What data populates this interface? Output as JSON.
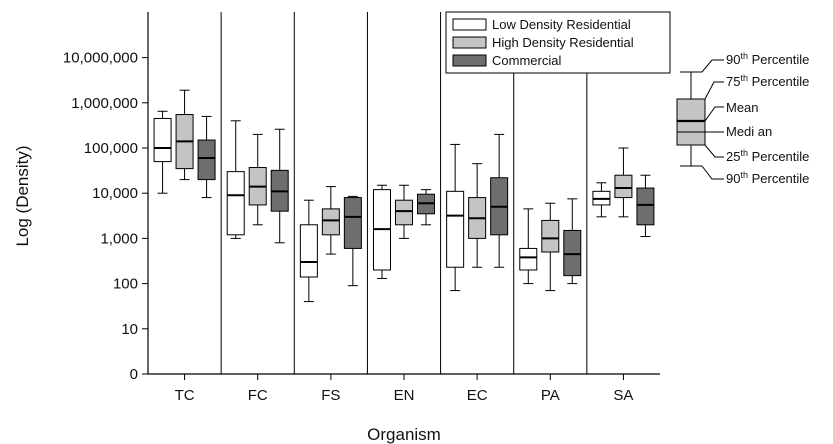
{
  "chart_data": {
    "type": "boxplot",
    "xlabel": "Organism",
    "ylabel": "Log (Density)",
    "y_scale": "log10",
    "ylim": [
      1,
      100000000
    ],
    "y_ticks": [
      {
        "value": 1,
        "label": "0"
      },
      {
        "value": 10,
        "label": "10"
      },
      {
        "value": 100,
        "label": "100"
      },
      {
        "value": 1000,
        "label": "1,000"
      },
      {
        "value": 10000,
        "label": "10,000"
      },
      {
        "value": 100000,
        "label": "100,000"
      },
      {
        "value": 1000000,
        "label": "1,000,000"
      },
      {
        "value": 10000000,
        "label": "10,000,000"
      }
    ],
    "categories": [
      "TC",
      "FC",
      "FS",
      "EN",
      "EC",
      "PA",
      "SA"
    ],
    "legend_position": "top-right",
    "series": [
      {
        "name": "Low Density Residential",
        "color": "#ffffff",
        "boxes": [
          {
            "wlo": 10000,
            "q1": 50000,
            "median": 100000,
            "q3": 450000,
            "whi": 650000
          },
          {
            "wlo": 1000,
            "q1": 1200,
            "median": 9000,
            "q3": 30000,
            "whi": 400000
          },
          {
            "wlo": 40,
            "q1": 140,
            "median": 300,
            "q3": 2000,
            "whi": 7000
          },
          {
            "wlo": 130,
            "q1": 200,
            "median": 1600,
            "q3": 12000,
            "whi": 15000
          },
          {
            "wlo": 70,
            "q1": 230,
            "median": 3200,
            "q3": 11000,
            "whi": 120000
          },
          {
            "wlo": 100,
            "q1": 200,
            "median": 380,
            "q3": 600,
            "whi": 4500
          },
          {
            "wlo": 3000,
            "q1": 5500,
            "median": 7500,
            "q3": 11000,
            "whi": 17000
          }
        ]
      },
      {
        "name": "High Density Residential",
        "color": "#c4c4c4",
        "boxes": [
          {
            "wlo": 20000,
            "q1": 35000,
            "median": 140000,
            "q3": 550000,
            "whi": 1900000
          },
          {
            "wlo": 2000,
            "q1": 5500,
            "median": 14000,
            "q3": 37000,
            "whi": 200000
          },
          {
            "wlo": 450,
            "q1": 1200,
            "median": 2500,
            "q3": 4500,
            "whi": 14000
          },
          {
            "wlo": 1000,
            "q1": 2000,
            "median": 4000,
            "q3": 7000,
            "whi": 15000
          },
          {
            "wlo": 230,
            "q1": 1000,
            "median": 2800,
            "q3": 8000,
            "whi": 45000
          },
          {
            "wlo": 70,
            "q1": 500,
            "median": 1000,
            "q3": 2500,
            "whi": 6000
          },
          {
            "wlo": 3000,
            "q1": 8000,
            "median": 13000,
            "q3": 25000,
            "whi": 100000
          }
        ]
      },
      {
        "name": "Commercial",
        "color": "#6e6e6e",
        "boxes": [
          {
            "wlo": 8000,
            "q1": 20000,
            "median": 60000,
            "q3": 150000,
            "whi": 500000
          },
          {
            "wlo": 800,
            "q1": 4000,
            "median": 11000,
            "q3": 32000,
            "whi": 260000
          },
          {
            "wlo": 90,
            "q1": 600,
            "median": 3000,
            "q3": 8000,
            "whi": 8500
          },
          {
            "wlo": 2000,
            "q1": 3500,
            "median": 6000,
            "q3": 9500,
            "whi": 12000
          },
          {
            "wlo": 230,
            "q1": 1200,
            "median": 5000,
            "q3": 22000,
            "whi": 200000
          },
          {
            "wlo": 100,
            "q1": 150,
            "median": 450,
            "q3": 1500,
            "whi": 7500
          },
          {
            "wlo": 1100,
            "q1": 2000,
            "median": 5500,
            "q3": 13000,
            "whi": 25000
          }
        ]
      }
    ],
    "key": {
      "labels": {
        "p90_top_base": "90",
        "p90_top_sup": "th",
        "p75_base": "75",
        "p75_sup": "th",
        "p_word": " Percentile",
        "mean": "Mean",
        "median": "Medi an",
        "p25_base": "25",
        "p25_sup": "th",
        "p90_bot_base": "90",
        "p90_bot_sup": "th"
      }
    }
  }
}
